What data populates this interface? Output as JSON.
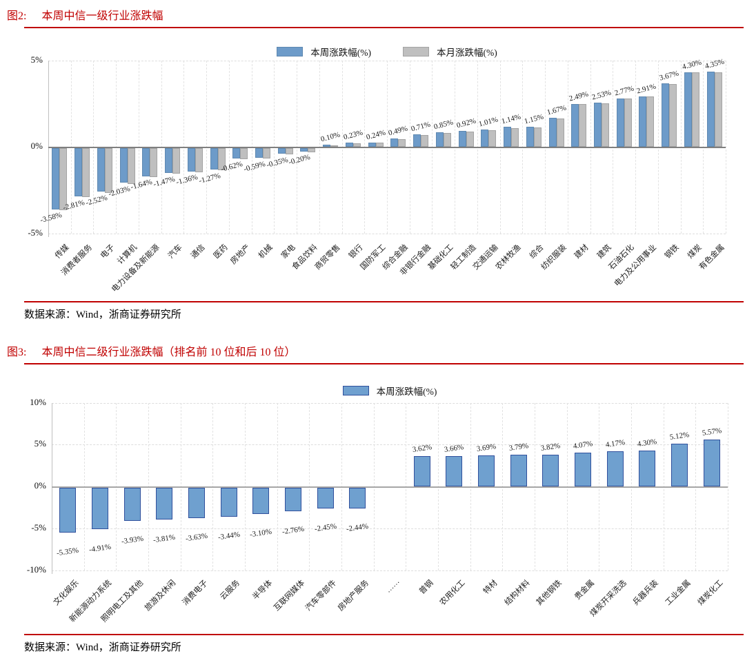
{
  "chart_data": [
    {
      "type": "bar",
      "fig_tag": "图2:",
      "title": "本周中信一级行业涨跌幅",
      "source": "数据来源：Wind，浙商证券研究所",
      "legend": [
        "本周涨跌幅(%)",
        "本月涨跌幅(%)"
      ],
      "legend_position": "top-center",
      "ylim": [
        -5,
        5
      ],
      "yticks": [
        "5%",
        "0%",
        "-5%"
      ],
      "ytick_values": [
        5,
        0,
        -5
      ],
      "grid_h_dashed_at": [
        5,
        -5
      ],
      "grid_vertical_dashed": true,
      "categories": [
        "传媒",
        "消费者服务",
        "电子",
        "计算机",
        "电力设备及新能源",
        "汽车",
        "通信",
        "医药",
        "房地产",
        "机械",
        "家电",
        "食品饮料",
        "商贸零售",
        "银行",
        "国防军工",
        "综合金融",
        "非银行金融",
        "基础化工",
        "轻工制造",
        "交通运输",
        "农林牧渔",
        "综合",
        "纺织服装",
        "建材",
        "建筑",
        "石油石化",
        "电力及公用事业",
        "钢铁",
        "煤炭",
        "有色金属"
      ],
      "series": [
        {
          "name": "本周涨跌幅(%)",
          "color": "#6D9BC9",
          "border_color": "#5E88B0",
          "show_labels": true,
          "values": [
            -3.58,
            -2.81,
            -2.52,
            -2.03,
            -1.64,
            -1.47,
            -1.36,
            -1.27,
            -0.62,
            -0.59,
            -0.35,
            -0.2,
            0.1,
            0.23,
            0.24,
            0.49,
            0.71,
            0.85,
            0.92,
            1.01,
            1.14,
            1.15,
            1.67,
            2.49,
            2.53,
            2.77,
            2.91,
            3.67,
            4.3,
            4.35
          ]
        },
        {
          "name": "本月涨跌幅(%)",
          "color": "#BFBFBF",
          "border_color": "#A3A3A3",
          "show_labels": false,
          "estimated": true,
          "values": [
            -3.6,
            -2.85,
            -2.6,
            -2.08,
            -1.68,
            -1.5,
            -1.4,
            -1.3,
            -0.65,
            -0.62,
            -0.38,
            -0.24,
            0.08,
            0.21,
            0.24,
            0.45,
            0.69,
            0.8,
            0.88,
            0.97,
            1.06,
            1.1,
            1.65,
            2.49,
            2.52,
            2.77,
            2.9,
            3.64,
            4.29,
            4.32
          ]
        }
      ]
    },
    {
      "type": "bar",
      "fig_tag": "图3:",
      "title": "本周中信二级行业涨跌幅（排名前 10 位和后 10 位）",
      "source": "数据来源：Wind，浙商证券研究所",
      "legend": [
        "本周涨跌幅(%)"
      ],
      "legend_position": "top-center",
      "ylim": [
        -10,
        10
      ],
      "yticks": [
        "10%",
        "5%",
        "0%",
        "-5%",
        "-10%"
      ],
      "ytick_values": [
        10,
        5,
        0,
        -5,
        -10
      ],
      "grid_h_dashed_at": [
        10,
        5,
        -5,
        -10
      ],
      "grid_vertical_dashed": true,
      "categories": [
        "文化娱乐",
        "新能源动力系统",
        "照明电工及其他",
        "旅游及休闲",
        "消费电子",
        "云服务",
        "半导体",
        "互联网媒体",
        "汽车零部件",
        "房地产服务",
        "……",
        "普钢",
        "农用化工",
        "特材",
        "结构材料",
        "其他钢铁",
        "贵金属",
        "煤炭开采洗选",
        "兵器兵装",
        "工业金属",
        "煤炭化工"
      ],
      "series": [
        {
          "name": "本周涨跌幅(%)",
          "color": "#6FA0CF",
          "border_color": "#2F4F9C",
          "show_labels": true,
          "values": [
            -5.35,
            -4.91,
            -3.93,
            -3.81,
            -3.63,
            -3.44,
            -3.1,
            -2.76,
            -2.45,
            -2.44,
            null,
            3.62,
            3.66,
            3.69,
            3.79,
            3.82,
            4.07,
            4.17,
            4.3,
            5.12,
            5.57
          ]
        }
      ]
    }
  ]
}
